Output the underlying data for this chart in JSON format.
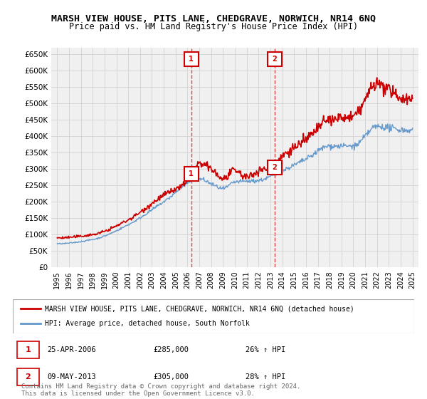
{
  "title": "MARSH VIEW HOUSE, PITS LANE, CHEDGRAVE, NORWICH, NR14 6NQ",
  "subtitle": "Price paid vs. HM Land Registry's House Price Index (HPI)",
  "ylim": [
    0,
    670000
  ],
  "yticks": [
    0,
    50000,
    100000,
    150000,
    200000,
    250000,
    300000,
    350000,
    400000,
    450000,
    500000,
    550000,
    600000,
    650000
  ],
  "ytick_labels": [
    "£0",
    "£50K",
    "£100K",
    "£150K",
    "£200K",
    "£250K",
    "£300K",
    "£350K",
    "£400K",
    "£450K",
    "£500K",
    "£550K",
    "£600K",
    "£650K"
  ],
  "xlim_start": 1994.5,
  "xlim_end": 2025.5,
  "xtick_years": [
    1995,
    1996,
    1997,
    1998,
    1999,
    2000,
    2001,
    2002,
    2003,
    2004,
    2005,
    2006,
    2007,
    2008,
    2009,
    2010,
    2011,
    2012,
    2013,
    2014,
    2015,
    2016,
    2017,
    2018,
    2019,
    2020,
    2021,
    2022,
    2023,
    2024,
    2025
  ],
  "sale1_x": 2006.32,
  "sale1_y": 285000,
  "sale1_label": "1",
  "sale1_date": "25-APR-2006",
  "sale1_price": "£285,000",
  "sale1_hpi": "26% ↑ HPI",
  "sale2_x": 2013.36,
  "sale2_y": 305000,
  "sale2_label": "2",
  "sale2_date": "09-MAY-2013",
  "sale2_price": "£305,000",
  "sale2_hpi": "28% ↑ HPI",
  "red_color": "#cc0000",
  "blue_color": "#6699cc",
  "background_color": "#ffffff",
  "grid_color": "#cccccc",
  "legend_line1": "MARSH VIEW HOUSE, PITS LANE, CHEDGRAVE, NORWICH, NR14 6NQ (detached house)",
  "legend_line2": "HPI: Average price, detached house, South Norfolk",
  "footer": "Contains HM Land Registry data © Crown copyright and database right 2024.\nThis data is licensed under the Open Government Licence v3.0.",
  "title_fontsize": 10,
  "subtitle_fontsize": 9
}
